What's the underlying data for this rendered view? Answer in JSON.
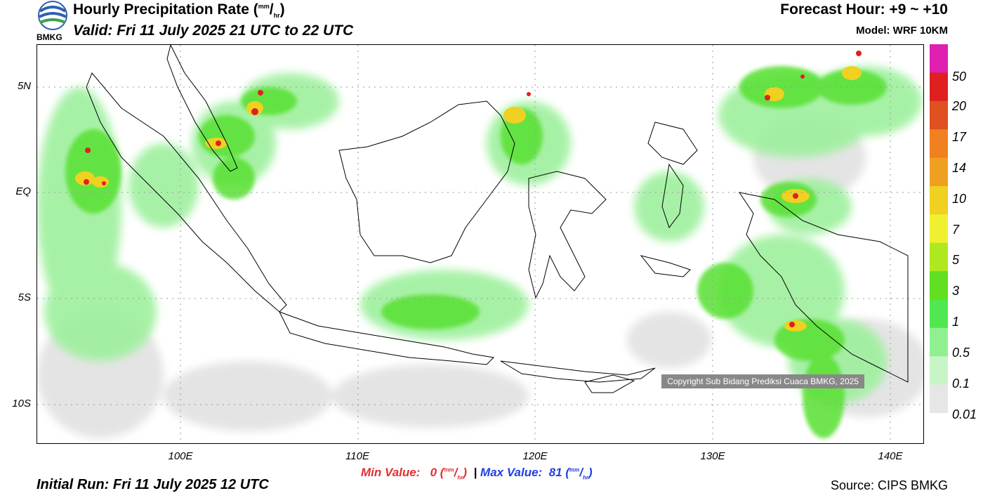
{
  "header": {
    "title_main": "Hourly Precipitation Rate (",
    "title_unit_top": "mm",
    "title_unit_bottom": "hr",
    "title_end": ")",
    "valid": "Valid: Fri 11 July 2025 21 UTC to 22 UTC",
    "forecast_hour": "Forecast Hour: +9 ~ +10",
    "model": "Model: WRF 10KM",
    "logo_text": "BMKG"
  },
  "map": {
    "lat_labels": [
      "5N",
      "EQ",
      "5S",
      "10S"
    ],
    "lon_labels": [
      "100E",
      "110E",
      "120E",
      "130E",
      "140E"
    ],
    "copyright": "Copyright Sub Bidang Prediksi Cuaca BMKG, 2025"
  },
  "legend": {
    "levels": [
      "50",
      "20",
      "17",
      "14",
      "10",
      "7",
      "5",
      "3",
      "1",
      "0.5",
      "0.1",
      "0.01"
    ],
    "colors": [
      "#e020b0",
      "#e02020",
      "#e05020",
      "#f08020",
      "#f0a020",
      "#f0d020",
      "#f0f030",
      "#b0e820",
      "#60e020",
      "#50e850",
      "#90f090",
      "#c8f5c8",
      "#e6e6e6"
    ]
  },
  "footer": {
    "min_label": "Min Value:",
    "min_value": "0",
    "separator": "|",
    "max_label": "Max Value:",
    "max_value": "81",
    "unit_top": "mm",
    "unit_bottom": "hr",
    "initial_run": "Initial Run: Fri 11 July 2025 12 UTC",
    "source": "Source: CIPS BMKG"
  }
}
